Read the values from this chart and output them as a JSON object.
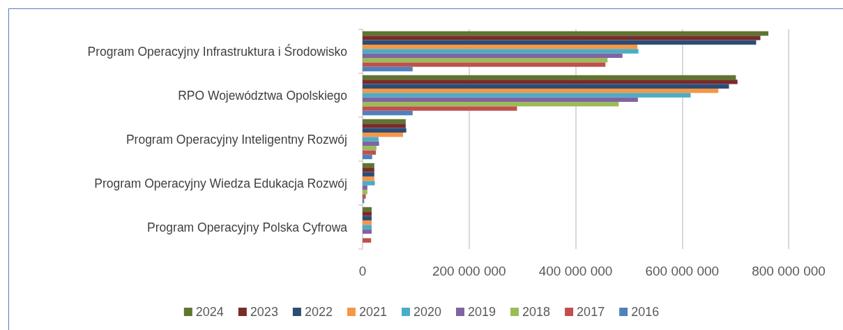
{
  "chart_data": {
    "type": "bar",
    "orientation": "horizontal",
    "categories": [
      "Program Operacyjny Infrastruktura i Środowisko",
      "RPO Województwa Opolskiego",
      "Program Operacyjny Inteligentny Rozwój",
      "Program Operacyjny Wiedza Edukacja Rozwój",
      "Program Operacyjny Polska Cyfrowa"
    ],
    "series": [
      {
        "name": "2024",
        "color": "#5f7530",
        "values": [
          762000000,
          701000000,
          81000000,
          22000000,
          17000000
        ]
      },
      {
        "name": "2023",
        "color": "#772c2a",
        "values": [
          747000000,
          704000000,
          81000000,
          22000000,
          17000000
        ]
      },
      {
        "name": "2022",
        "color": "#2c4d75",
        "values": [
          739000000,
          688000000,
          82000000,
          22000000,
          17000000
        ]
      },
      {
        "name": "2021",
        "color": "#f79646",
        "values": [
          516000000,
          668000000,
          76000000,
          22000000,
          17000000
        ]
      },
      {
        "name": "2020",
        "color": "#4bacc6",
        "values": [
          518000000,
          616000000,
          30000000,
          23000000,
          17000000
        ]
      },
      {
        "name": "2019",
        "color": "#8064a2",
        "values": [
          488000000,
          517000000,
          31000000,
          9000000,
          17000000
        ]
      },
      {
        "name": "2018",
        "color": "#9bbb59",
        "values": [
          460000000,
          481000000,
          26000000,
          9000000,
          null
        ]
      },
      {
        "name": "2017",
        "color": "#c0504d",
        "values": [
          456000000,
          290000000,
          25000000,
          6000000,
          16000000
        ]
      },
      {
        "name": "2016",
        "color": "#4f81bd",
        "values": [
          94000000,
          94000000,
          18000000,
          3000000,
          null
        ]
      }
    ],
    "xlim": [
      0,
      800000000
    ],
    "xticks": [
      0,
      {
        "value": 200000000,
        "label": "200 000 000"
      },
      {
        "value": 400000000,
        "label": "400 000 000"
      },
      {
        "value": 600000000,
        "label": "600 000 000"
      },
      {
        "value": 800000000,
        "label": "800 000 000"
      }
    ],
    "grid": "x",
    "legend": "bottom"
  }
}
